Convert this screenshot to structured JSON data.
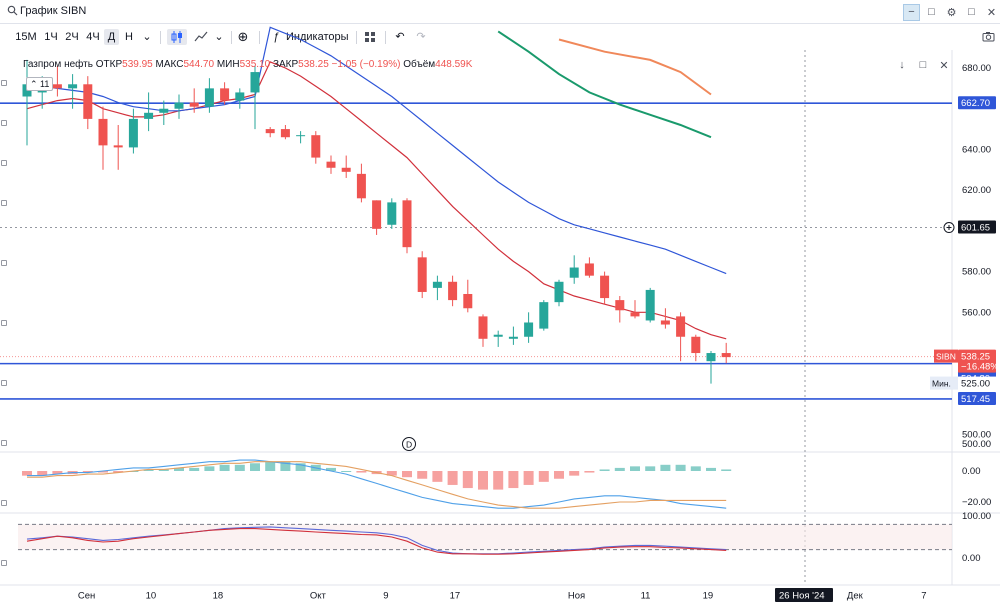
{
  "search": {
    "text": "График SIBN"
  },
  "toolbar": {
    "timeframes": [
      "15М",
      "1Ч",
      "2Ч",
      "4Ч",
      "Д",
      "Н"
    ],
    "selected": "Д",
    "indicators_label": "Индикаторы"
  },
  "legend": {
    "name": "Газпром нефть",
    "open_label": "ОТКР",
    "open": "539.95",
    "high_label": "МАКС",
    "high": "544.70",
    "low_label": "МИН",
    "low": "535.10",
    "close_label": "ЗАКР",
    "close": "538.25",
    "change": "−1.05 (−0.19%)",
    "volume_label": "Объём",
    "volume": "448.59K",
    "badge": "11"
  },
  "colors": {
    "up": "#26a69a",
    "down": "#ef5350",
    "ma_fast": "#d1303b",
    "ma_mid": "#2f56d8",
    "ma_slow": "#1a9a6c",
    "ma_slowest": "#f0885a",
    "hline": "#2f56d8",
    "macd_line": "#4fa0e8",
    "signal_line": "#e4a062",
    "rsi_line": "#5b6ad8",
    "stoch_line": "#d1303b"
  },
  "chart_data": [
    {
      "type": "candlestick",
      "symbol": "SIBN",
      "y_ticks": [
        680,
        660,
        640,
        620,
        600,
        580,
        560,
        540,
        520,
        500
      ],
      "y_tick_labels": [
        "680.00",
        "",
        "640.00",
        "620.00",
        "",
        "580.00",
        "560.00",
        "",
        "",
        "500.00"
      ],
      "x_labels": [
        "Сен",
        "10",
        "18",
        "Окт",
        "9",
        "17",
        "Ноя",
        "11",
        "19",
        "26 Ноя '24",
        "Дек",
        "7"
      ],
      "crosshair_price": "601.65",
      "price_tags": [
        {
          "label": "662.70",
          "value": 662.7,
          "style": "line"
        },
        {
          "label": "534.80",
          "value": 534.8,
          "style": "line"
        },
        {
          "label": "517.45",
          "value": 517.45,
          "style": "line"
        },
        {
          "label": "SIBN",
          "value": 538.25,
          "style": "last"
        },
        {
          "label": "538.25",
          "value": 538.25,
          "style": "last"
        },
        {
          "label": "−16.48%",
          "value": 538.25,
          "style": "last-sub"
        },
        {
          "label": "Мин.",
          "value": 525,
          "style": "min"
        },
        {
          "label": "525.00",
          "value": 525,
          "style": "min"
        }
      ],
      "candles": [
        {
          "o": 666,
          "h": 684,
          "l": 642,
          "c": 672
        },
        {
          "o": 668,
          "h": 676,
          "l": 660,
          "c": 672
        },
        {
          "o": 672,
          "h": 681,
          "l": 666,
          "c": 670
        },
        {
          "o": 670,
          "h": 677,
          "l": 660,
          "c": 672
        },
        {
          "o": 672,
          "h": 676,
          "l": 650,
          "c": 655
        },
        {
          "o": 655,
          "h": 661,
          "l": 630,
          "c": 642
        },
        {
          "o": 642,
          "h": 652,
          "l": 630,
          "c": 641
        },
        {
          "o": 641,
          "h": 660,
          "l": 638,
          "c": 655
        },
        {
          "o": 655,
          "h": 668,
          "l": 649,
          "c": 658
        },
        {
          "o": 658,
          "h": 664,
          "l": 652,
          "c": 660
        },
        {
          "o": 660,
          "h": 667,
          "l": 655,
          "c": 663
        },
        {
          "o": 663,
          "h": 670,
          "l": 658,
          "c": 661
        },
        {
          "o": 661,
          "h": 675,
          "l": 658,
          "c": 670
        },
        {
          "o": 670,
          "h": 673,
          "l": 662,
          "c": 664
        },
        {
          "o": 664,
          "h": 670,
          "l": 660,
          "c": 668
        },
        {
          "o": 668,
          "h": 681,
          "l": 650,
          "c": 678
        },
        {
          "o": 650,
          "h": 651,
          "l": 646,
          "c": 648
        },
        {
          "o": 650,
          "h": 652,
          "l": 645,
          "c": 646
        },
        {
          "o": 647,
          "h": 649,
          "l": 643,
          "c": 647
        },
        {
          "o": 647,
          "h": 649,
          "l": 633,
          "c": 636
        },
        {
          "o": 634,
          "h": 637,
          "l": 628,
          "c": 631
        },
        {
          "o": 631,
          "h": 637,
          "l": 626,
          "c": 629
        },
        {
          "o": 628,
          "h": 633,
          "l": 614,
          "c": 616
        },
        {
          "o": 615,
          "h": 615,
          "l": 598,
          "c": 601
        },
        {
          "o": 603,
          "h": 616,
          "l": 601,
          "c": 614
        },
        {
          "o": 615,
          "h": 616,
          "l": 589,
          "c": 592
        },
        {
          "o": 587,
          "h": 590,
          "l": 567,
          "c": 570
        },
        {
          "o": 572,
          "h": 578,
          "l": 566,
          "c": 575
        },
        {
          "o": 575,
          "h": 578,
          "l": 563,
          "c": 566
        },
        {
          "o": 569,
          "h": 576,
          "l": 560,
          "c": 562
        },
        {
          "o": 558,
          "h": 559,
          "l": 543,
          "c": 547
        },
        {
          "o": 548,
          "h": 551,
          "l": 543,
          "c": 549
        },
        {
          "o": 547,
          "h": 553,
          "l": 544,
          "c": 548
        },
        {
          "o": 548,
          "h": 560,
          "l": 545,
          "c": 555
        },
        {
          "o": 552,
          "h": 566,
          "l": 551,
          "c": 565
        },
        {
          "o": 565,
          "h": 576,
          "l": 563,
          "c": 575
        },
        {
          "o": 577,
          "h": 588,
          "l": 574,
          "c": 582
        },
        {
          "o": 584,
          "h": 587,
          "l": 577,
          "c": 578
        },
        {
          "o": 578,
          "h": 580,
          "l": 564,
          "c": 567
        },
        {
          "o": 566,
          "h": 568,
          "l": 555,
          "c": 561
        },
        {
          "o": 560,
          "h": 566,
          "l": 557,
          "c": 558
        },
        {
          "o": 556,
          "h": 572,
          "l": 555,
          "c": 571
        },
        {
          "o": 556,
          "h": 562,
          "l": 552,
          "c": 554
        },
        {
          "o": 558,
          "h": 560,
          "l": 536,
          "c": 548
        },
        {
          "o": 548,
          "h": 549,
          "l": 536,
          "c": 540
        },
        {
          "o": 536,
          "h": 541,
          "l": 525,
          "c": 540
        },
        {
          "o": 540,
          "h": 545,
          "l": 535,
          "c": 538
        }
      ],
      "moving_averages": [
        {
          "name": "ma_fast",
          "values": [
            660,
            662,
            664,
            665,
            664,
            660,
            658,
            656,
            656,
            657,
            659,
            660,
            662,
            664,
            665,
            667,
            683,
            680,
            676,
            671,
            666,
            660,
            654,
            648,
            642,
            636,
            628,
            620,
            612,
            605,
            598,
            591,
            585,
            580,
            574,
            571,
            568,
            566,
            564,
            562,
            560,
            560,
            558,
            556,
            552,
            549,
            547
          ]
        },
        {
          "name": "ma_mid",
          "values": [
            672,
            671,
            670,
            669,
            668,
            666,
            663,
            661,
            660,
            659,
            659,
            660,
            661,
            662,
            664,
            666,
            700,
            697,
            694,
            690,
            686,
            681,
            676,
            671,
            666,
            660,
            654,
            648,
            642,
            636,
            630,
            624,
            619,
            614,
            610,
            606,
            603,
            601,
            599,
            597,
            595,
            593,
            591,
            588,
            585,
            582,
            579
          ]
        }
      ],
      "slow_averages": [
        {
          "name": "ma_slow",
          "points": [
            [
              31,
              698
            ],
            [
              33,
              688
            ],
            [
              35,
              677
            ],
            [
              37,
              668
            ],
            [
              39,
              662
            ],
            [
              41,
              657
            ],
            [
              43,
              652
            ],
            [
              45,
              646
            ]
          ]
        },
        {
          "name": "ma_slowest",
          "points": [
            [
              35,
              694
            ],
            [
              38,
              688
            ],
            [
              41,
              684
            ],
            [
              43,
              678
            ],
            [
              45,
              667
            ]
          ]
        }
      ]
    },
    {
      "type": "bar",
      "name_marker": "D",
      "y_tick_labels": [
        "500.00",
        "0.00",
        "−20.00"
      ],
      "histogram": [
        -3,
        -3,
        -2,
        -2,
        -1,
        -1,
        -1,
        0,
        1,
        1,
        2,
        2,
        3,
        4,
        4,
        5,
        6,
        6,
        5,
        4,
        2,
        0,
        -1,
        -2,
        -3,
        -4,
        -5,
        -7,
        -9,
        -11,
        -12,
        -12,
        -11,
        -9,
        -7,
        -5,
        -3,
        -1,
        1,
        2,
        3,
        3,
        4,
        4,
        3,
        2,
        1
      ],
      "macd": [
        -3,
        -3,
        -2,
        -1,
        -1,
        0,
        1,
        2,
        2,
        3,
        4,
        5,
        6,
        6,
        7,
        7,
        6,
        5,
        4,
        2,
        0,
        -2,
        -5,
        -8,
        -11,
        -14,
        -17,
        -19,
        -21,
        -22,
        -23,
        -24,
        -24,
        -23,
        -22,
        -20,
        -18,
        -17,
        -16,
        -16,
        -17,
        -18,
        -19,
        -21,
        -22,
        -23,
        -24
      ],
      "signal": [
        -4,
        -4,
        -3,
        -3,
        -2,
        -2,
        -1,
        0,
        1,
        1,
        2,
        3,
        4,
        5,
        5,
        6,
        6,
        6,
        6,
        5,
        4,
        3,
        1,
        -1,
        -3,
        -6,
        -9,
        -12,
        -15,
        -18,
        -20,
        -22,
        -23,
        -24,
        -24,
        -24,
        -23,
        -22,
        -21,
        -20,
        -20,
        -19,
        -19,
        -19,
        -19,
        -19,
        -19
      ]
    },
    {
      "type": "line",
      "y_tick_labels": [
        "100.00",
        "0.00"
      ],
      "levels": [
        80,
        20
      ],
      "rsi": [
        45,
        48,
        52,
        50,
        46,
        42,
        44,
        48,
        52,
        55,
        58,
        62,
        66,
        70,
        72,
        73,
        74,
        72,
        70,
        68,
        66,
        64,
        62,
        60,
        56,
        48,
        30,
        18,
        12,
        10,
        10,
        10,
        12,
        14,
        16,
        18,
        20,
        22,
        26,
        28,
        30,
        30,
        28,
        26,
        24,
        22,
        20
      ],
      "stoch": [
        40,
        46,
        52,
        48,
        42,
        38,
        40,
        46,
        50,
        54,
        58,
        62,
        66,
        68,
        70,
        70,
        68,
        66,
        64,
        62,
        60,
        58,
        56,
        55,
        50,
        40,
        24,
        14,
        10,
        10,
        9,
        9,
        10,
        12,
        14,
        16,
        18,
        20,
        24,
        26,
        27,
        27,
        25,
        24,
        22,
        20,
        18
      ]
    }
  ]
}
